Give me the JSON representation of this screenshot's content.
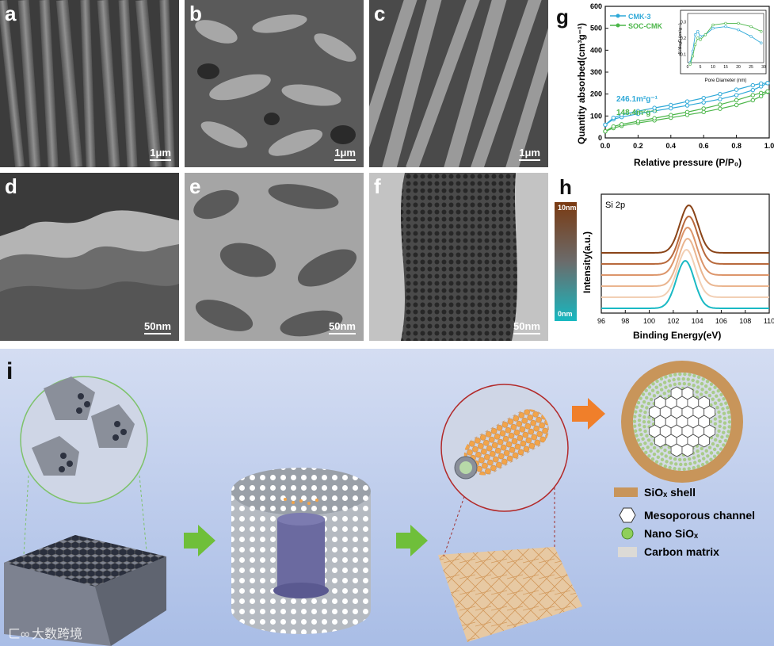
{
  "panels": {
    "a": {
      "label": "a",
      "scale": "1μm"
    },
    "b": {
      "label": "b",
      "scale": "1μm"
    },
    "c": {
      "label": "c",
      "scale": "1μm"
    },
    "d": {
      "label": "d",
      "scale": "50nm"
    },
    "e": {
      "label": "e",
      "scale": "50nm"
    },
    "f": {
      "label": "f",
      "scale": "50nm"
    },
    "g": {
      "label": "g"
    },
    "h": {
      "label": "h"
    },
    "i": {
      "label": "i"
    }
  },
  "schematic": {
    "legend": {
      "shell": "SiOₓ shell",
      "channel": "Mesoporous channel",
      "nano": "Nano SiOₓ",
      "matrix": "Carbon matrix"
    },
    "watermark": "大数跨境",
    "colors": {
      "shell": "#c8955a",
      "arrow_green": "#6fbf3a",
      "arrow_orange": "#f07f2a",
      "bg_top": "#cfd9f1",
      "bg_bottom": "#9fb5e3"
    }
  },
  "chart_data": [
    {
      "type": "scatter",
      "panel": "g",
      "title": "",
      "xlabel": "Relative pressure (P/P₀)",
      "ylabel": "Quantity absorbed(cm³g⁻¹)",
      "xlim": [
        0,
        1.0
      ],
      "ylim": [
        0,
        600
      ],
      "xticks": [
        "0.0",
        "0.2",
        "0.4",
        "0.6",
        "0.8",
        "1.0"
      ],
      "yticks": [
        "0",
        "100",
        "200",
        "300",
        "400",
        "500",
        "600"
      ],
      "legend_position": "top-left",
      "annotations": [
        "246.1m²g⁻¹",
        "148.4m²g⁻¹"
      ],
      "series": [
        {
          "name": "CMK-3",
          "color": "#2fa9d8",
          "x": [
            0.0,
            0.05,
            0.1,
            0.2,
            0.3,
            0.4,
            0.5,
            0.6,
            0.7,
            0.8,
            0.9,
            0.95,
            0.99
          ],
          "adsorption": [
            60,
            85,
            95,
            110,
            123,
            135,
            148,
            162,
            177,
            195,
            218,
            235,
            250
          ],
          "desorption": [
            60,
            92,
            105,
            122,
            137,
            150,
            166,
            182,
            200,
            220,
            240,
            248,
            250
          ]
        },
        {
          "name": "SOC-CMK",
          "color": "#4cb64a",
          "x": [
            0.0,
            0.05,
            0.1,
            0.2,
            0.3,
            0.4,
            0.5,
            0.6,
            0.7,
            0.8,
            0.9,
            0.95,
            0.99
          ],
          "adsorption": [
            30,
            45,
            55,
            68,
            80,
            92,
            105,
            118,
            133,
            150,
            172,
            190,
            210
          ],
          "desorption": [
            30,
            52,
            62,
            76,
            90,
            104,
            118,
            134,
            152,
            172,
            195,
            205,
            212
          ]
        }
      ],
      "inset": {
        "xlabel": "Pore Diameter (nm)",
        "ylabel": "dV/dlogD (cm³g⁻¹)",
        "xticks": [
          "0",
          "5",
          "10",
          "15",
          "20",
          "25",
          "30"
        ],
        "yticks": [
          "0.1",
          "0.2",
          "0.3"
        ],
        "xlim": [
          0,
          30
        ],
        "ylim": [
          0.05,
          0.35
        ],
        "series": [
          {
            "name": "CMK-3",
            "x": [
              1,
              2,
              3,
              4,
              5,
              7,
              10,
              15,
              20,
              25,
              29
            ],
            "y": [
              0.05,
              0.12,
              0.22,
              0.24,
              0.21,
              0.22,
              0.26,
              0.27,
              0.25,
              0.21,
              0.17
            ]
          },
          {
            "name": "SOC-CMK",
            "x": [
              1,
              2,
              3,
              4,
              5,
              7,
              10,
              15,
              20,
              25,
              29
            ],
            "y": [
              0.04,
              0.09,
              0.16,
              0.2,
              0.19,
              0.22,
              0.28,
              0.29,
              0.29,
              0.27,
              0.24
            ]
          }
        ]
      }
    },
    {
      "type": "line",
      "panel": "h",
      "title": "Si 2p",
      "xlabel": "Binding Energy(eV)",
      "ylabel": "Intensity(a.u.)",
      "xlim": [
        96,
        110
      ],
      "xticks": [
        "96",
        "98",
        "100",
        "102",
        "104",
        "106",
        "108",
        "110"
      ],
      "colorbar": {
        "top": "10nm",
        "bottom": "0nm",
        "top_color": "#7a3a12",
        "bottom_color": "#17b8c0"
      },
      "series": [
        {
          "depth": 0,
          "color": "#1ab9c4",
          "peak_center": 103.0,
          "peak_height": 1.0
        },
        {
          "depth": 1,
          "color": "#f2cfb4",
          "peak_center": 103.1,
          "peak_height": 1.0
        },
        {
          "depth": 2,
          "color": "#eab58f",
          "peak_center": 103.2,
          "peak_height": 1.0
        },
        {
          "depth": 3,
          "color": "#dc956a",
          "peak_center": 103.2,
          "peak_height": 1.0
        },
        {
          "depth": 4,
          "color": "#b8693c",
          "peak_center": 103.3,
          "peak_height": 1.0
        },
        {
          "depth": 5,
          "color": "#8a4418",
          "peak_center": 103.3,
          "peak_height": 1.0
        }
      ]
    }
  ]
}
